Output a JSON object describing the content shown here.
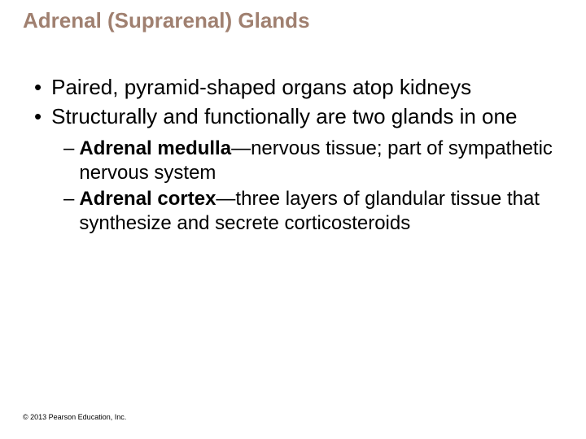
{
  "title": {
    "text": "Adrenal (Suprarenal) Glands",
    "color": "#a08070",
    "fontsize": 26,
    "weight": "bold"
  },
  "bullets": [
    {
      "text": "Paired, pyramid-shaped organs atop kidneys"
    },
    {
      "text": "Structurally and functionally are two glands in one"
    }
  ],
  "sub_bullets": [
    {
      "bold": "Adrenal medulla",
      "rest": "—nervous tissue; part of sympathetic nervous system"
    },
    {
      "bold": "Adrenal cortex",
      "rest": "—three layers of glandular tissue that synthesize and secrete corticosteroids"
    }
  ],
  "copyright": "© 2013 Pearson Education, Inc.",
  "colors": {
    "background": "#ffffff",
    "title": "#a08070",
    "body_text": "#000000"
  },
  "typography": {
    "title_fontsize": 26,
    "bullet_fontsize": 26,
    "sub_fontsize": 24,
    "copyright_fontsize": 9,
    "font_family": "Arial"
  }
}
